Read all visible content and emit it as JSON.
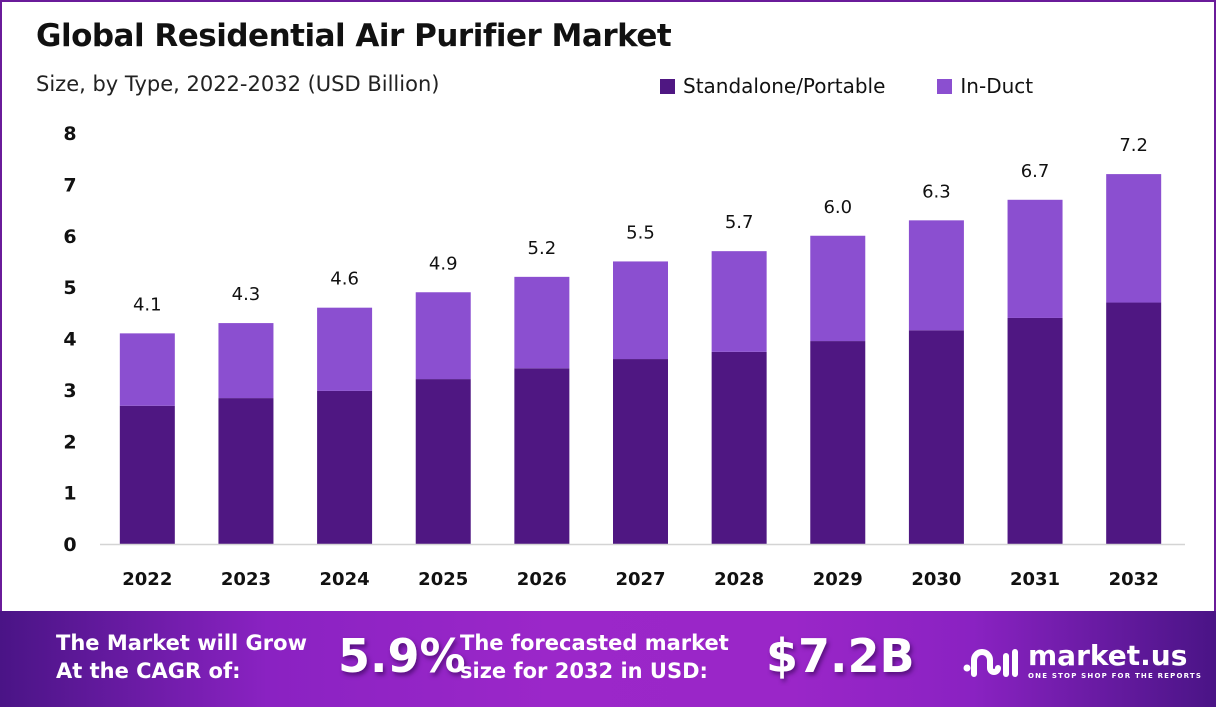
{
  "title": "Global Residential Air Purifier Market",
  "subtitle": "Size, by Type, 2022-2032 (USD Billion)",
  "colors": {
    "standalone": "#4f1782",
    "in_duct": "#8b4fd0",
    "border": "#6a1b9a"
  },
  "chart_data": {
    "type": "bar",
    "stacked": true,
    "title": "Global Residential Air Purifier Market",
    "subtitle": "Size, by Type, 2022-2032 (USD Billion)",
    "xlabel": "",
    "ylabel": "",
    "categories": [
      "2022",
      "2023",
      "2024",
      "2025",
      "2026",
      "2027",
      "2028",
      "2029",
      "2030",
      "2031",
      "2032"
    ],
    "series": [
      {
        "name": "Standalone/Portable",
        "values": [
          2.69,
          2.84,
          2.98,
          3.21,
          3.42,
          3.6,
          3.74,
          3.95,
          4.16,
          4.4,
          4.7
        ]
      },
      {
        "name": "In-Duct",
        "values": [
          1.41,
          1.46,
          1.62,
          1.69,
          1.78,
          1.9,
          1.96,
          2.05,
          2.14,
          2.3,
          2.5
        ]
      }
    ],
    "totals": [
      "4.1",
      "4.3",
      "4.6",
      "4.9",
      "5.2",
      "5.5",
      "5.7",
      "6.0",
      "6.3",
      "6.7",
      "7.2"
    ],
    "yticks": [
      "0",
      "1",
      "2",
      "3",
      "4",
      "5",
      "6",
      "7",
      "8"
    ],
    "ylim": [
      0,
      8
    ],
    "grid": false,
    "legend_position": "top-right"
  },
  "legend": [
    {
      "label": "Standalone/Portable"
    },
    {
      "label": "In-Duct"
    }
  ],
  "banner": {
    "cagr_text_line1": "The Market will Grow",
    "cagr_text_line2": "At the CAGR of:",
    "cagr_value": "5.9%",
    "forecast_text_line1": "The forecasted market",
    "forecast_text_line2": "size for 2032 in USD:",
    "forecast_value": "$7.2B"
  },
  "logo": {
    "name": "market.us",
    "tagline": "ONE STOP SHOP FOR THE REPORTS"
  }
}
